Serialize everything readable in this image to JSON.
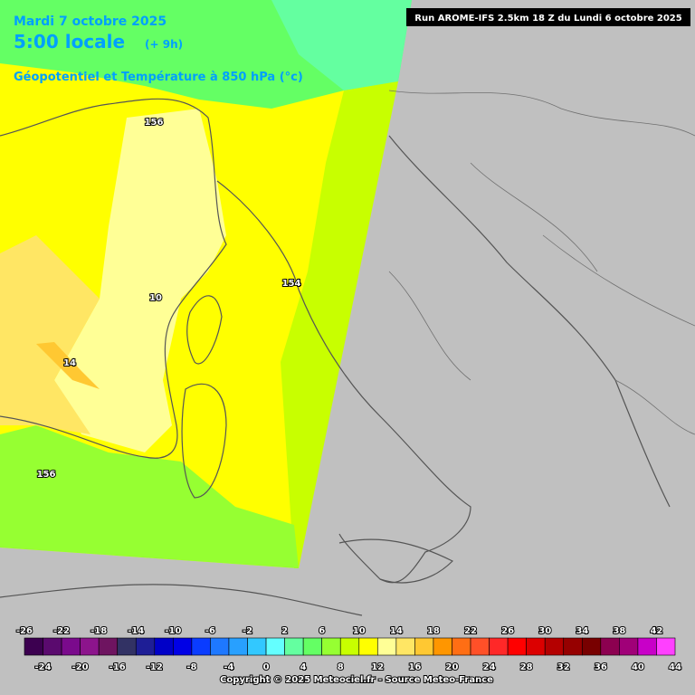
{
  "header": {
    "date": "Mardi 7 octobre 2025",
    "time": "5:00 locale",
    "offset": "(+ 9h)",
    "field": "Géopotentiel et Température à 850 hPa (°c)",
    "run": "Run AROME-IFS 2.5km 18 Z du Lundi 6 octobre 2025"
  },
  "contour_labels": [
    156,
    10,
    154,
    14,
    156
  ],
  "legend": {
    "ticks": [
      -26,
      -24,
      -22,
      -20,
      -18,
      -16,
      -14,
      -12,
      -10,
      -8,
      -6,
      -4,
      -2,
      0,
      2,
      4,
      6,
      8,
      10,
      12,
      14,
      16,
      18,
      20,
      22,
      24,
      26,
      28,
      30,
      32,
      34,
      36,
      38,
      40,
      42,
      44
    ],
    "colors": [
      "#3c0050",
      "#5a0a6e",
      "#7a0a8c",
      "#8c148c",
      "#6e1460",
      "#323264",
      "#1e1e96",
      "#0000c8",
      "#0000e6",
      "#0a3cff",
      "#1e78ff",
      "#28a0ff",
      "#32c8ff",
      "#64ffff",
      "#64ffa0",
      "#64ff64",
      "#96ff32",
      "#c8ff00",
      "#ffff00",
      "#ffff96",
      "#ffe664",
      "#ffc832",
      "#ff9600",
      "#ff6e14",
      "#ff5028",
      "#ff2828",
      "#ff0000",
      "#dc0000",
      "#b40000",
      "#960000",
      "#780000",
      "#8c0050",
      "#a00078",
      "#c800c8",
      "#ff40ff"
    ]
  },
  "footer": "Copyright © 2025 Meteociel.fr - Source Meteo-France"
}
